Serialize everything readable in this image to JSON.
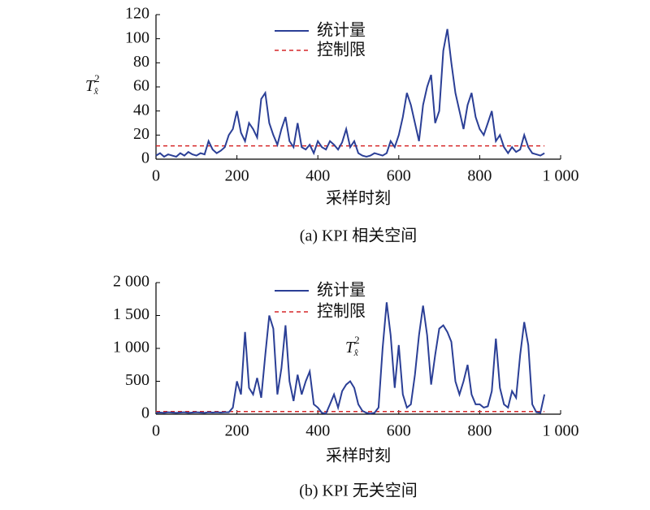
{
  "chart_data": [
    {
      "type": "line",
      "caption": "(a) KPI 相关空间",
      "xlabel": "采样时刻",
      "ylabel": {
        "base": "T",
        "sup": "2",
        "sub": "x̂"
      },
      "xlim": [
        0,
        1000
      ],
      "ylim": [
        0,
        120
      ],
      "xticks": [
        0,
        200,
        400,
        600,
        800,
        {
          "value": 1000,
          "label": "1 000"
        }
      ],
      "yticks": [
        0,
        20,
        40,
        60,
        80,
        100,
        120
      ],
      "x": [
        0,
        10,
        20,
        30,
        40,
        50,
        60,
        70,
        80,
        90,
        100,
        110,
        120,
        130,
        140,
        150,
        160,
        170,
        180,
        190,
        200,
        210,
        220,
        230,
        240,
        250,
        260,
        270,
        280,
        290,
        300,
        310,
        320,
        330,
        340,
        350,
        360,
        370,
        380,
        390,
        400,
        410,
        420,
        430,
        440,
        450,
        460,
        470,
        480,
        490,
        500,
        510,
        520,
        530,
        540,
        550,
        560,
        570,
        580,
        590,
        600,
        610,
        620,
        630,
        640,
        650,
        660,
        670,
        680,
        690,
        700,
        710,
        720,
        730,
        740,
        750,
        760,
        770,
        780,
        790,
        800,
        810,
        820,
        830,
        840,
        850,
        860,
        870,
        880,
        890,
        900,
        910,
        920,
        930,
        940,
        950,
        960
      ],
      "series": [
        {
          "name": "统计量",
          "color": "#2b3f96",
          "values": [
            3,
            5,
            2,
            4,
            3,
            2,
            5,
            3,
            6,
            4,
            3,
            5,
            4,
            15,
            8,
            5,
            7,
            10,
            20,
            25,
            40,
            22,
            15,
            30,
            25,
            18,
            50,
            55,
            30,
            20,
            12,
            25,
            35,
            15,
            10,
            30,
            10,
            8,
            12,
            5,
            15,
            10,
            8,
            15,
            12,
            8,
            14,
            25,
            10,
            15,
            5,
            3,
            2,
            3,
            5,
            4,
            3,
            5,
            15,
            10,
            20,
            35,
            55,
            45,
            30,
            15,
            45,
            60,
            70,
            30,
            40,
            90,
            108,
            80,
            55,
            40,
            25,
            45,
            55,
            35,
            25,
            20,
            30,
            40,
            15,
            20,
            10,
            5,
            10,
            6,
            8,
            20,
            10,
            5,
            4,
            3,
            5
          ]
        }
      ],
      "control_limit": {
        "name": "控制限",
        "color": "#d62728",
        "value": 11
      }
    },
    {
      "type": "line",
      "caption": "(b) KPI 无关空间",
      "xlabel": "采样时刻",
      "ylabel": {
        "base": "T",
        "sup": "2",
        "sub": "x̂"
      },
      "xlim": [
        0,
        1000
      ],
      "ylim": [
        0,
        2000
      ],
      "xticks": [
        0,
        200,
        400,
        600,
        800,
        {
          "value": 1000,
          "label": "1 000"
        }
      ],
      "yticks": [
        0,
        500,
        {
          "value": 1000,
          "label": "1 000"
        },
        {
          "value": 1500,
          "label": "1 500"
        },
        {
          "value": 2000,
          "label": "2 000"
        }
      ],
      "x": [
        0,
        10,
        20,
        30,
        40,
        50,
        60,
        70,
        80,
        90,
        100,
        110,
        120,
        130,
        140,
        150,
        160,
        170,
        180,
        190,
        200,
        210,
        220,
        230,
        240,
        250,
        260,
        270,
        280,
        290,
        300,
        310,
        320,
        330,
        340,
        350,
        360,
        370,
        380,
        390,
        400,
        410,
        420,
        430,
        440,
        450,
        460,
        470,
        480,
        490,
        500,
        510,
        520,
        530,
        540,
        550,
        560,
        570,
        580,
        590,
        600,
        610,
        620,
        630,
        640,
        650,
        660,
        670,
        680,
        690,
        700,
        710,
        720,
        730,
        740,
        750,
        760,
        770,
        780,
        790,
        800,
        810,
        820,
        830,
        840,
        850,
        860,
        870,
        880,
        890,
        900,
        910,
        920,
        930,
        940,
        950,
        960
      ],
      "series": [
        {
          "name": "统计量",
          "color": "#2b3f96",
          "values": [
            20,
            25,
            20,
            30,
            25,
            20,
            25,
            30,
            20,
            25,
            30,
            25,
            20,
            30,
            25,
            30,
            25,
            30,
            30,
            100,
            500,
            300,
            1250,
            400,
            300,
            550,
            250,
            900,
            1500,
            1300,
            300,
            700,
            1350,
            500,
            200,
            600,
            300,
            500,
            650,
            150,
            100,
            20,
            10,
            150,
            300,
            100,
            350,
            450,
            500,
            400,
            150,
            50,
            20,
            10,
            20,
            100,
            1000,
            1700,
            1200,
            400,
            1050,
            300,
            100,
            150,
            600,
            1200,
            1650,
            1200,
            450,
            900,
            1300,
            1350,
            1250,
            1100,
            500,
            300,
            500,
            750,
            300,
            150,
            150,
            100,
            120,
            350,
            1150,
            400,
            150,
            100,
            350,
            250,
            900,
            1400,
            1050,
            150,
            30,
            20,
            300
          ]
        }
      ],
      "control_limit": {
        "name": "控制限",
        "color": "#d62728",
        "value": 40
      }
    }
  ]
}
